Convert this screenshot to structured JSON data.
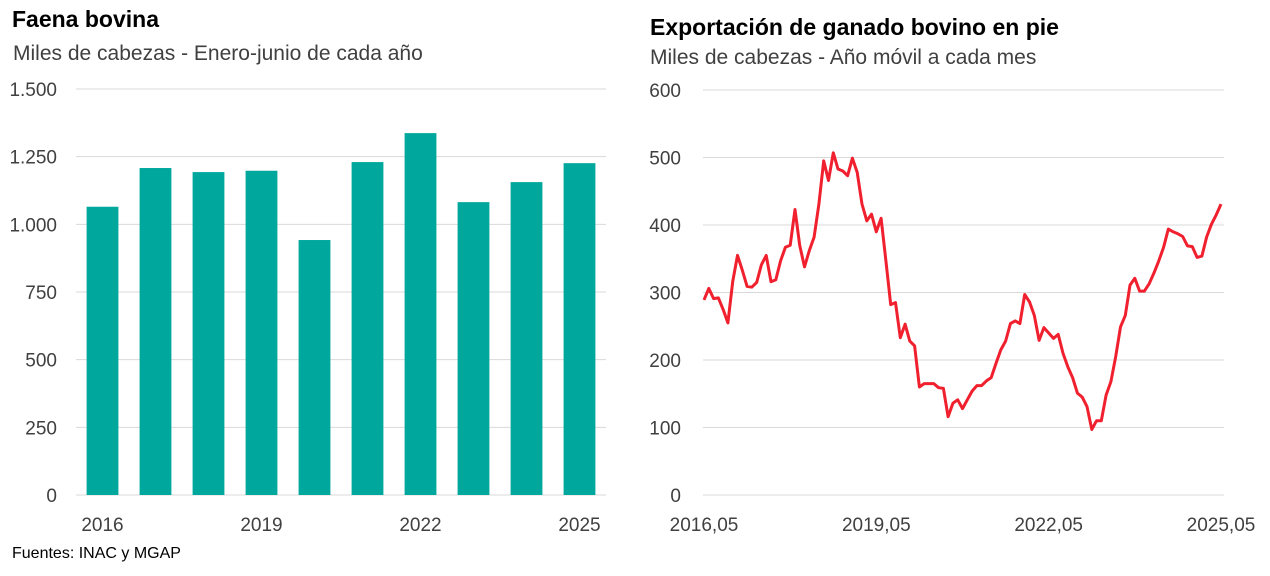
{
  "source": "Fuentes: INAC y MGAP",
  "colors": {
    "bar": "#00A79D",
    "line": "#F0202E",
    "grid": "#D9D9D9",
    "text": "#404040"
  },
  "chart_data": [
    {
      "type": "bar",
      "title": "Faena bovina",
      "subtitle": "Miles de cabezas - Enero-junio de cada año",
      "xlabel": "",
      "ylabel": "",
      "categories": [
        "2016",
        "2017",
        "2018",
        "2019",
        "2020",
        "2021",
        "2022",
        "2023",
        "2024",
        "2025"
      ],
      "x_tick_labels": [
        "2016",
        "",
        "",
        "2019",
        "",
        "",
        "2022",
        "",
        "",
        "2025"
      ],
      "values": [
        1065,
        1208,
        1193,
        1198,
        942,
        1230,
        1337,
        1082,
        1156,
        1226
      ],
      "ylim": [
        0,
        1500
      ],
      "y_ticks": [
        0,
        250,
        500,
        750,
        1000,
        1250,
        1500
      ],
      "y_tick_labels": [
        "0",
        "250",
        "500",
        "750",
        "1.000",
        "1.250",
        "1.500"
      ],
      "grid": true,
      "legend": "none"
    },
    {
      "type": "line",
      "title": "Exportación de ganado bovino en pie",
      "subtitle": "Miles de cabezas - Año móvil a cada mes",
      "xlabel": "",
      "ylabel": "",
      "x_start": "2016,05",
      "x_end": "2025,05",
      "x_tick_labels": [
        "2016,05",
        "2019,05",
        "2022,05",
        "2025,05"
      ],
      "ylim": [
        0,
        600
      ],
      "y_ticks": [
        0,
        100,
        200,
        300,
        400,
        500,
        600
      ],
      "y_tick_labels": [
        "0",
        "100",
        "200",
        "300",
        "400",
        "500",
        "600"
      ],
      "grid": true,
      "legend": "none",
      "series": [
        {
          "name": "Exportación en pie",
          "values": [
            289,
            306,
            291,
            292,
            275,
            255,
            316,
            355,
            333,
            309,
            308,
            315,
            341,
            355,
            316,
            319,
            347,
            367,
            370,
            423,
            370,
            338,
            362,
            382,
            431,
            495,
            466,
            507,
            483,
            480,
            473,
            499,
            478,
            431,
            406,
            416,
            390,
            410,
            347,
            282,
            285,
            233,
            253,
            228,
            221,
            160,
            165,
            165,
            165,
            159,
            158,
            116,
            136,
            141,
            128,
            141,
            154,
            162,
            162,
            169,
            174,
            195,
            215,
            228,
            254,
            258,
            254,
            297,
            286,
            266,
            229,
            248,
            240,
            232,
            238,
            210,
            190,
            174,
            151,
            145,
            131,
            97,
            110,
            110,
            148,
            168,
            205,
            249,
            266,
            311,
            321,
            302,
            302,
            313,
            329,
            347,
            367,
            394,
            390,
            387,
            383,
            369,
            368,
            352,
            354,
            382,
            401,
            415,
            431
          ]
        }
      ]
    }
  ]
}
